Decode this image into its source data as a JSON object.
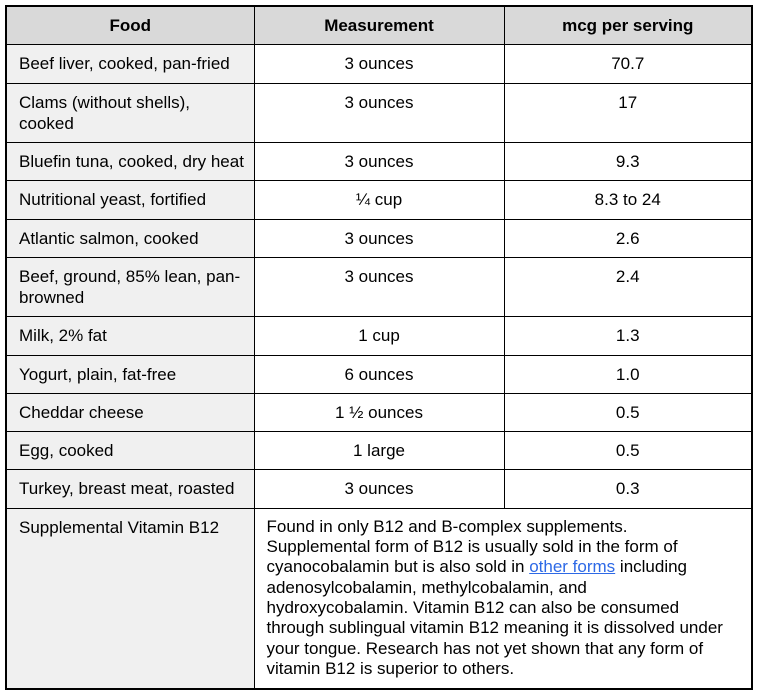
{
  "colors": {
    "header_bg": "#d9d9d9",
    "food_column_bg": "#f0f0f0",
    "border": "#000000",
    "link": "#2d69e6",
    "text": "#000000"
  },
  "table": {
    "headers": {
      "food": "Food",
      "measurement": "Measurement",
      "mcg": "mcg per serving"
    },
    "rows": [
      {
        "food": "Beef liver, cooked, pan-fried",
        "measurement": "3 ounces",
        "mcg": "70.7"
      },
      {
        "food": "Clams (without shells), cooked",
        "measurement": "3 ounces",
        "mcg": "17"
      },
      {
        "food": "Bluefin tuna, cooked, dry heat",
        "measurement": "3 ounces",
        "mcg": "9.3"
      },
      {
        "food": "Nutritional yeast, fortified",
        "measurement": "¼ cup",
        "mcg": "8.3 to 24"
      },
      {
        "food": "Atlantic salmon, cooked",
        "measurement": "3 ounces",
        "mcg": "2.6"
      },
      {
        "food": "Beef, ground, 85% lean, pan-browned",
        "measurement": "3 ounces",
        "mcg": "2.4"
      },
      {
        "food": "Milk, 2% fat",
        "measurement": "1 cup",
        "mcg": "1.3"
      },
      {
        "food": "Yogurt, plain, fat-free",
        "measurement": "6 ounces",
        "mcg": "1.0"
      },
      {
        "food": "Cheddar cheese",
        "measurement": "1 ½ ounces",
        "mcg": "0.5"
      },
      {
        "food": "Egg, cooked",
        "measurement": "1 large",
        "mcg": "0.5"
      },
      {
        "food": "Turkey, breast meat, roasted",
        "measurement": "3 ounces",
        "mcg": "0.3"
      }
    ],
    "supplemental": {
      "label": "Supplemental Vitamin B12",
      "desc_before": "Found in only B12 and B-complex supplements. Supplemental form of B12 is usually sold in the form of cyanocobalamin but is also sold in ",
      "link_text": "other forms",
      "desc_after": " including adenosylcobalamin, methylcobalamin, and hydroxycobalamin. Vitamin B12 can also be consumed through sublingual vitamin B12 meaning it is dissolved under your tongue. Research has not yet shown that any form of vitamin B12 is superior to others."
    }
  }
}
